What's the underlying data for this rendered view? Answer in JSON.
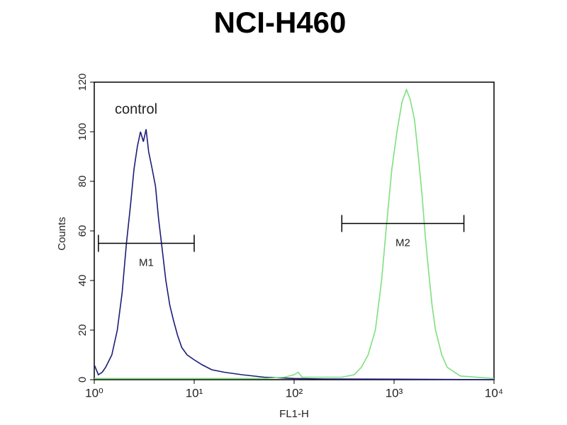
{
  "chart_data": {
    "type": "line",
    "title": "NCI-H460",
    "x_label": "FL1-H",
    "y_label": "Counts",
    "x_scale": "log",
    "xlim": [
      1,
      10000
    ],
    "xticks": [
      {
        "value": 1,
        "label": "10⁰"
      },
      {
        "value": 10,
        "label": "10¹"
      },
      {
        "value": 100,
        "label": "10²"
      },
      {
        "value": 1000,
        "label": "10³"
      },
      {
        "value": 10000,
        "label": "10⁴"
      }
    ],
    "ylim": [
      0,
      120
    ],
    "yticks": [
      0,
      20,
      40,
      60,
      80,
      100,
      120
    ],
    "series": [
      {
        "name": "control",
        "color": "#1c1c78",
        "x": [
          1,
          1.1,
          1.2,
          1.3,
          1.5,
          1.7,
          1.9,
          2.1,
          2.3,
          2.5,
          2.7,
          2.9,
          3.1,
          3.3,
          3.5,
          3.8,
          4.1,
          4.4,
          4.8,
          5.2,
          5.7,
          6.2,
          6.8,
          7.5,
          8.5,
          10,
          12,
          15,
          20,
          30,
          50,
          100,
          200,
          1000,
          10000
        ],
        "values": [
          6,
          2,
          3,
          5,
          10,
          20,
          35,
          55,
          70,
          85,
          94,
          100,
          96,
          101,
          92,
          85,
          78,
          65,
          52,
          40,
          30,
          24,
          18,
          13,
          10,
          8,
          6,
          4,
          3,
          2,
          1,
          0.5,
          0.3,
          0.2,
          0
        ]
      },
      {
        "color": "#7ee07e",
        "x": [
          1,
          10,
          50,
          80,
          100,
          110,
          120,
          200,
          300,
          400,
          470,
          550,
          650,
          750,
          830,
          950,
          1070,
          1200,
          1330,
          1450,
          1600,
          1750,
          1900,
          2050,
          2200,
          2400,
          2600,
          3000,
          3400,
          4600,
          10000
        ],
        "values": [
          0.5,
          0.5,
          0.5,
          1,
          2,
          3,
          1,
          1,
          1,
          2,
          5,
          10,
          20,
          40,
          60,
          85,
          100,
          112,
          117,
          113,
          105,
          90,
          75,
          58,
          45,
          30,
          20,
          10,
          5,
          1.5,
          0.5
        ]
      }
    ],
    "gates": [
      {
        "label": "M1",
        "x": [
          1.1,
          10
        ],
        "y": 55
      },
      {
        "label": "M2",
        "x": [
          300,
          5000
        ],
        "y": 63
      }
    ]
  }
}
